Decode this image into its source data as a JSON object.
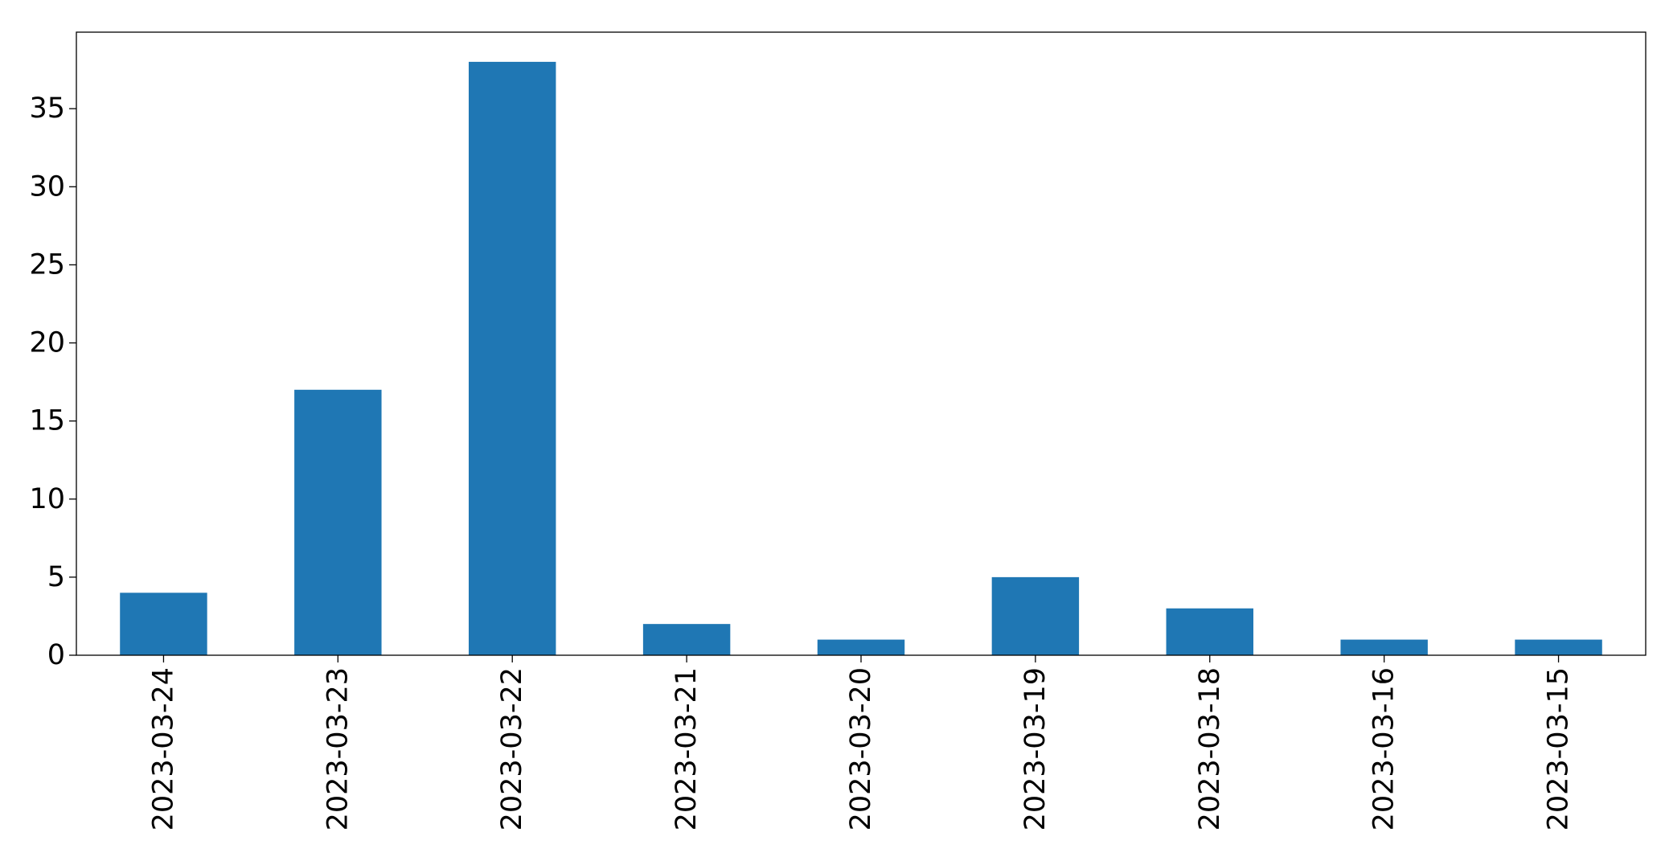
{
  "chart_data": {
    "type": "bar",
    "categories": [
      "2023-03-24",
      "2023-03-23",
      "2023-03-22",
      "2023-03-21",
      "2023-03-20",
      "2023-03-19",
      "2023-03-18",
      "2023-03-16",
      "2023-03-15"
    ],
    "values": [
      4,
      17,
      38,
      2,
      1,
      5,
      3,
      1,
      1
    ],
    "yticks": [
      0,
      5,
      10,
      15,
      20,
      25,
      30,
      35
    ],
    "ylim": [
      0,
      39.9
    ],
    "title": "",
    "xlabel": "",
    "ylabel": "",
    "bar_color": "#1f77b4",
    "grid": false,
    "legend": false
  }
}
